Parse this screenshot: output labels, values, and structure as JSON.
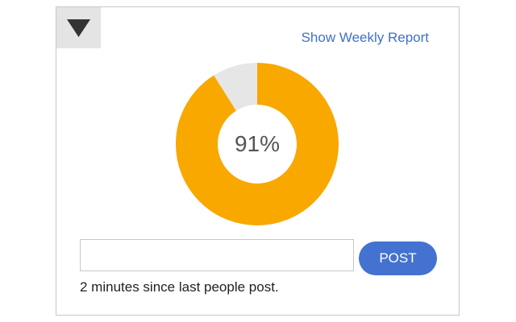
{
  "header": {
    "toggle_icon": "triangle-down-icon",
    "report_link": "Show Weekly Report"
  },
  "progress": {
    "percent": 91,
    "label": "91%",
    "fill_color": "#f9a800",
    "track_color": "#e6e6e6"
  },
  "composer": {
    "input_value": "",
    "input_placeholder": "",
    "post_label": "POST",
    "button_color": "#4472d0"
  },
  "status": {
    "text": "2 minutes since last people post."
  }
}
